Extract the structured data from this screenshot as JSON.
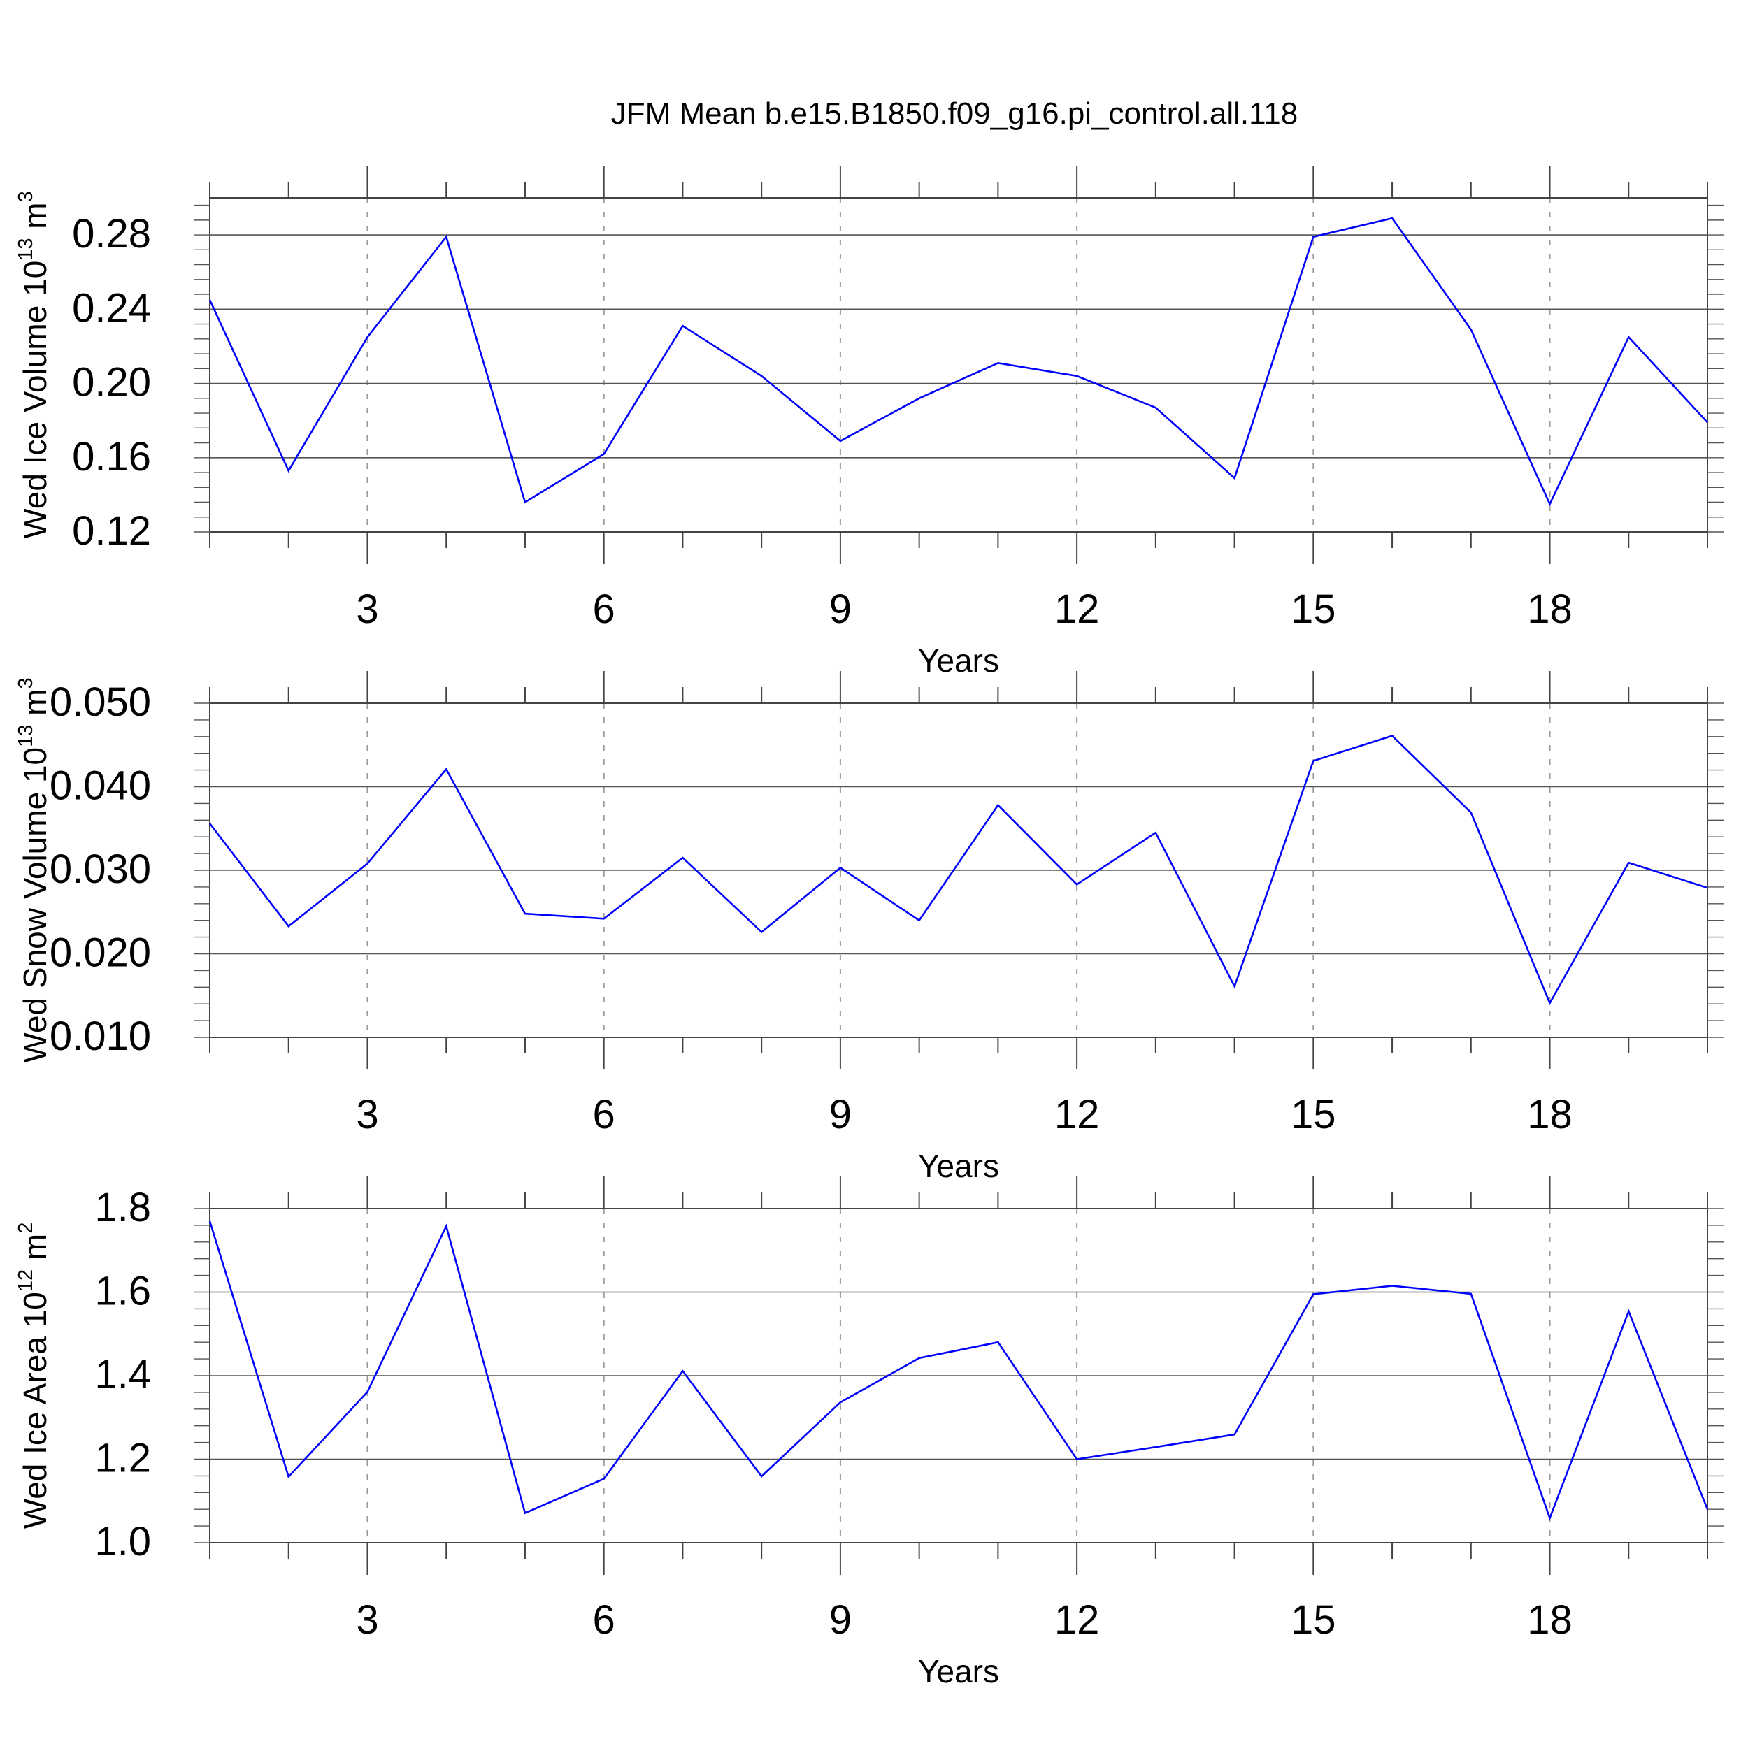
{
  "title": "JFM Mean b.e15.B1850.f09_g16.pi_control.all.118",
  "line_color": "#0000ff",
  "chart_data": [
    {
      "type": "line",
      "ylabel_main": "Wed Ice Volume 10",
      "ylabel_exp": "13",
      "ylabel_unit": "m",
      "ylabel_unit_exp": "3",
      "xlabel": "Years",
      "xlim": [
        1,
        20
      ],
      "ylim": [
        0.12,
        0.3
      ],
      "y_ticks": [
        0.12,
        0.16,
        0.2,
        0.24,
        0.28
      ],
      "y_tick_labels": [
        "0.12",
        "0.16",
        "0.20",
        "0.24",
        "0.28"
      ],
      "x_ticks": [
        3,
        6,
        9,
        12,
        15,
        18
      ],
      "x_tick_labels": [
        "3",
        "6",
        "9",
        "12",
        "15",
        "18"
      ],
      "x": [
        1,
        2,
        3,
        4,
        5,
        6,
        7,
        8,
        9,
        10,
        11,
        12,
        13,
        14,
        15,
        16,
        17,
        18,
        19,
        20
      ],
      "values": [
        0.245,
        0.153,
        0.225,
        0.279,
        0.136,
        0.162,
        0.231,
        0.204,
        0.169,
        0.192,
        0.211,
        0.204,
        0.187,
        0.149,
        0.279,
        0.289,
        0.229,
        0.135,
        0.225,
        0.179
      ]
    },
    {
      "type": "line",
      "ylabel_main": "Wed Snow Volume 10",
      "ylabel_exp": "13",
      "ylabel_unit": "m",
      "ylabel_unit_exp": "3",
      "xlabel": "Years",
      "xlim": [
        1,
        20
      ],
      "ylim": [
        0.01,
        0.05
      ],
      "y_ticks": [
        0.01,
        0.02,
        0.03,
        0.04,
        0.05
      ],
      "y_tick_labels": [
        "0.010",
        "0.020",
        "0.030",
        "0.040",
        "0.050"
      ],
      "x_ticks": [
        3,
        6,
        9,
        12,
        15,
        18
      ],
      "x_tick_labels": [
        "3",
        "6",
        "9",
        "12",
        "15",
        "18"
      ],
      "x": [
        1,
        2,
        3,
        4,
        5,
        6,
        7,
        8,
        9,
        10,
        11,
        12,
        13,
        14,
        15,
        16,
        17,
        18,
        19,
        20
      ],
      "values": [
        0.0356,
        0.0233,
        0.0308,
        0.0421,
        0.0248,
        0.0242,
        0.0315,
        0.0226,
        0.0303,
        0.024,
        0.0378,
        0.0283,
        0.0345,
        0.0161,
        0.0431,
        0.0461,
        0.0369,
        0.0141,
        0.0309,
        0.0279
      ]
    },
    {
      "type": "line",
      "ylabel_main": "Wed Ice Area 10",
      "ylabel_exp": "12",
      "ylabel_unit": "m",
      "ylabel_unit_exp": "2",
      "xlabel": "Years",
      "xlim": [
        1,
        20
      ],
      "ylim": [
        1.0,
        1.8
      ],
      "y_ticks": [
        1.0,
        1.2,
        1.4,
        1.6,
        1.8
      ],
      "y_tick_labels": [
        "1.0",
        "1.2",
        "1.4",
        "1.6",
        "1.8"
      ],
      "x_ticks": [
        3,
        6,
        9,
        12,
        15,
        18
      ],
      "x_tick_labels": [
        "3",
        "6",
        "9",
        "12",
        "15",
        "18"
      ],
      "x": [
        1,
        2,
        3,
        4,
        5,
        6,
        7,
        8,
        9,
        10,
        11,
        12,
        13,
        14,
        15,
        16,
        17,
        18,
        19,
        20
      ],
      "values": [
        1.77,
        1.158,
        1.361,
        1.758,
        1.071,
        1.153,
        1.411,
        1.159,
        1.336,
        1.442,
        1.48,
        1.2,
        1.229,
        1.259,
        1.595,
        1.615,
        1.596,
        1.059,
        1.554,
        1.08
      ]
    }
  ]
}
